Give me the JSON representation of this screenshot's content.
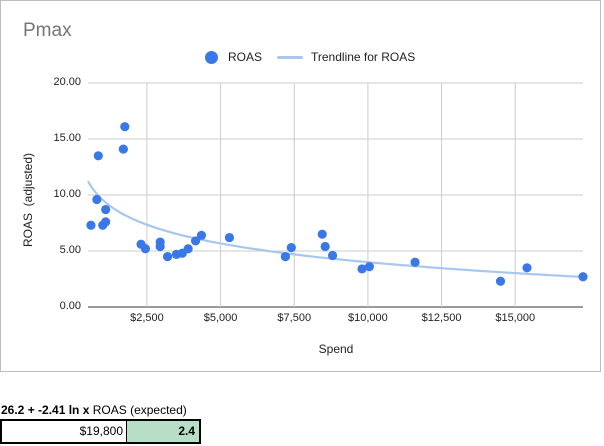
{
  "chart_data": {
    "type": "scatter",
    "title": "Pmax",
    "xlabel": "Spend",
    "ylabel": "ROAS  (adjusted)",
    "xlim": [
      500,
      17300
    ],
    "ylim": [
      0,
      20
    ],
    "yticks": [
      "0.00",
      "5.00",
      "10.00",
      "15.00",
      "20.00"
    ],
    "yticks_values": [
      0,
      5,
      10,
      15,
      20
    ],
    "xticks": [
      "$2,500",
      "$5,000",
      "$7,500",
      "$10,000",
      "$12,500",
      "$15,000"
    ],
    "xticks_values": [
      2500,
      5000,
      7500,
      10000,
      12500,
      15000
    ],
    "grid": true,
    "legend_position": "top",
    "series": [
      {
        "name": "ROAS",
        "color": "#3b78e7",
        "points": [
          {
            "x": 600,
            "y": 7.3
          },
          {
            "x": 800,
            "y": 9.6
          },
          {
            "x": 850,
            "y": 13.5
          },
          {
            "x": 1000,
            "y": 7.3
          },
          {
            "x": 1100,
            "y": 7.6
          },
          {
            "x": 1100,
            "y": 8.7
          },
          {
            "x": 1700,
            "y": 14.1
          },
          {
            "x": 1750,
            "y": 16.1
          },
          {
            "x": 2300,
            "y": 5.6
          },
          {
            "x": 2450,
            "y": 5.2
          },
          {
            "x": 2950,
            "y": 5.8
          },
          {
            "x": 2950,
            "y": 5.4
          },
          {
            "x": 3200,
            "y": 4.5
          },
          {
            "x": 3500,
            "y": 4.7
          },
          {
            "x": 3700,
            "y": 4.8
          },
          {
            "x": 3900,
            "y": 5.2
          },
          {
            "x": 4150,
            "y": 5.9
          },
          {
            "x": 4350,
            "y": 6.4
          },
          {
            "x": 5300,
            "y": 6.2
          },
          {
            "x": 7200,
            "y": 4.5
          },
          {
            "x": 7400,
            "y": 5.3
          },
          {
            "x": 8450,
            "y": 6.5
          },
          {
            "x": 8550,
            "y": 5.4
          },
          {
            "x": 8800,
            "y": 4.6
          },
          {
            "x": 9800,
            "y": 3.4
          },
          {
            "x": 10050,
            "y": 3.6
          },
          {
            "x": 11600,
            "y": 4.0
          },
          {
            "x": 14500,
            "y": 2.3
          },
          {
            "x": 15400,
            "y": 3.5
          },
          {
            "x": 17300,
            "y": 2.7
          }
        ]
      }
    ],
    "trendline": {
      "name": "Trendline for ROAS",
      "color": "#a8c7f0",
      "intercept": 26.2,
      "slope": -2.41,
      "type": "log",
      "x_range": [
        500,
        17300
      ]
    }
  },
  "formula": {
    "bold_text": "26.2 + -2.41 ln x",
    "rest_text": " ROAS (expected)"
  },
  "calc": {
    "spend": "$19,800",
    "roas": "2.4"
  }
}
